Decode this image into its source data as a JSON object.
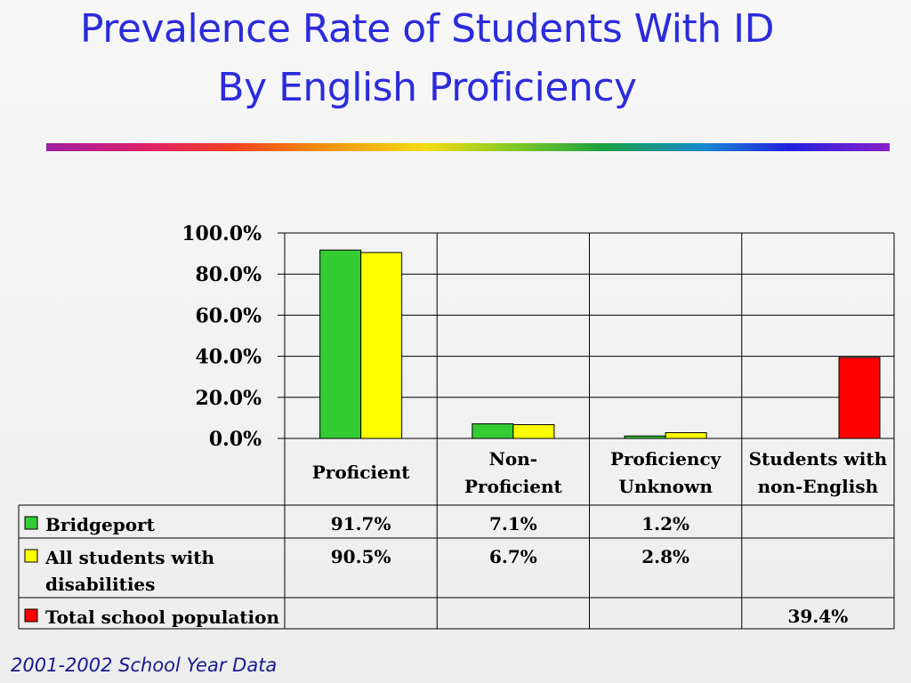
{
  "title": {
    "line1": "Prevalence Rate of Students With ID",
    "line2": "By English Proficiency"
  },
  "footer": "2001-2002 School Year Data",
  "chart_data": {
    "type": "bar",
    "categories": [
      [
        "Proficient"
      ],
      [
        "Non-",
        "Proficient"
      ],
      [
        "Proficiency",
        "Unknown"
      ],
      [
        "Students with",
        "non-English"
      ]
    ],
    "yticks": [
      "100.0%",
      "80.0%",
      "60.0%",
      "40.0%",
      "20.0%",
      "0.0%"
    ],
    "ylim": [
      0,
      100
    ],
    "grid": true,
    "legend": "data-table",
    "series": [
      {
        "name": "Bridgeport",
        "name_lines": [
          "Bridgeport"
        ],
        "color": "#33cc33",
        "values": [
          91.7,
          7.1,
          1.2,
          null
        ],
        "labels": [
          "91.7%",
          "7.1%",
          "1.2%",
          ""
        ]
      },
      {
        "name": "All students with disabilities",
        "name_lines": [
          "All students with",
          "disabilities"
        ],
        "color": "#ffff00",
        "values": [
          90.5,
          6.7,
          2.8,
          null
        ],
        "labels": [
          "90.5%",
          "6.7%",
          "2.8%",
          ""
        ]
      },
      {
        "name": "Total school population",
        "name_lines": [
          "Total school population"
        ],
        "color": "#ff0000",
        "values": [
          null,
          null,
          null,
          39.4
        ],
        "labels": [
          "",
          "",
          "",
          "39.4%"
        ]
      }
    ]
  }
}
